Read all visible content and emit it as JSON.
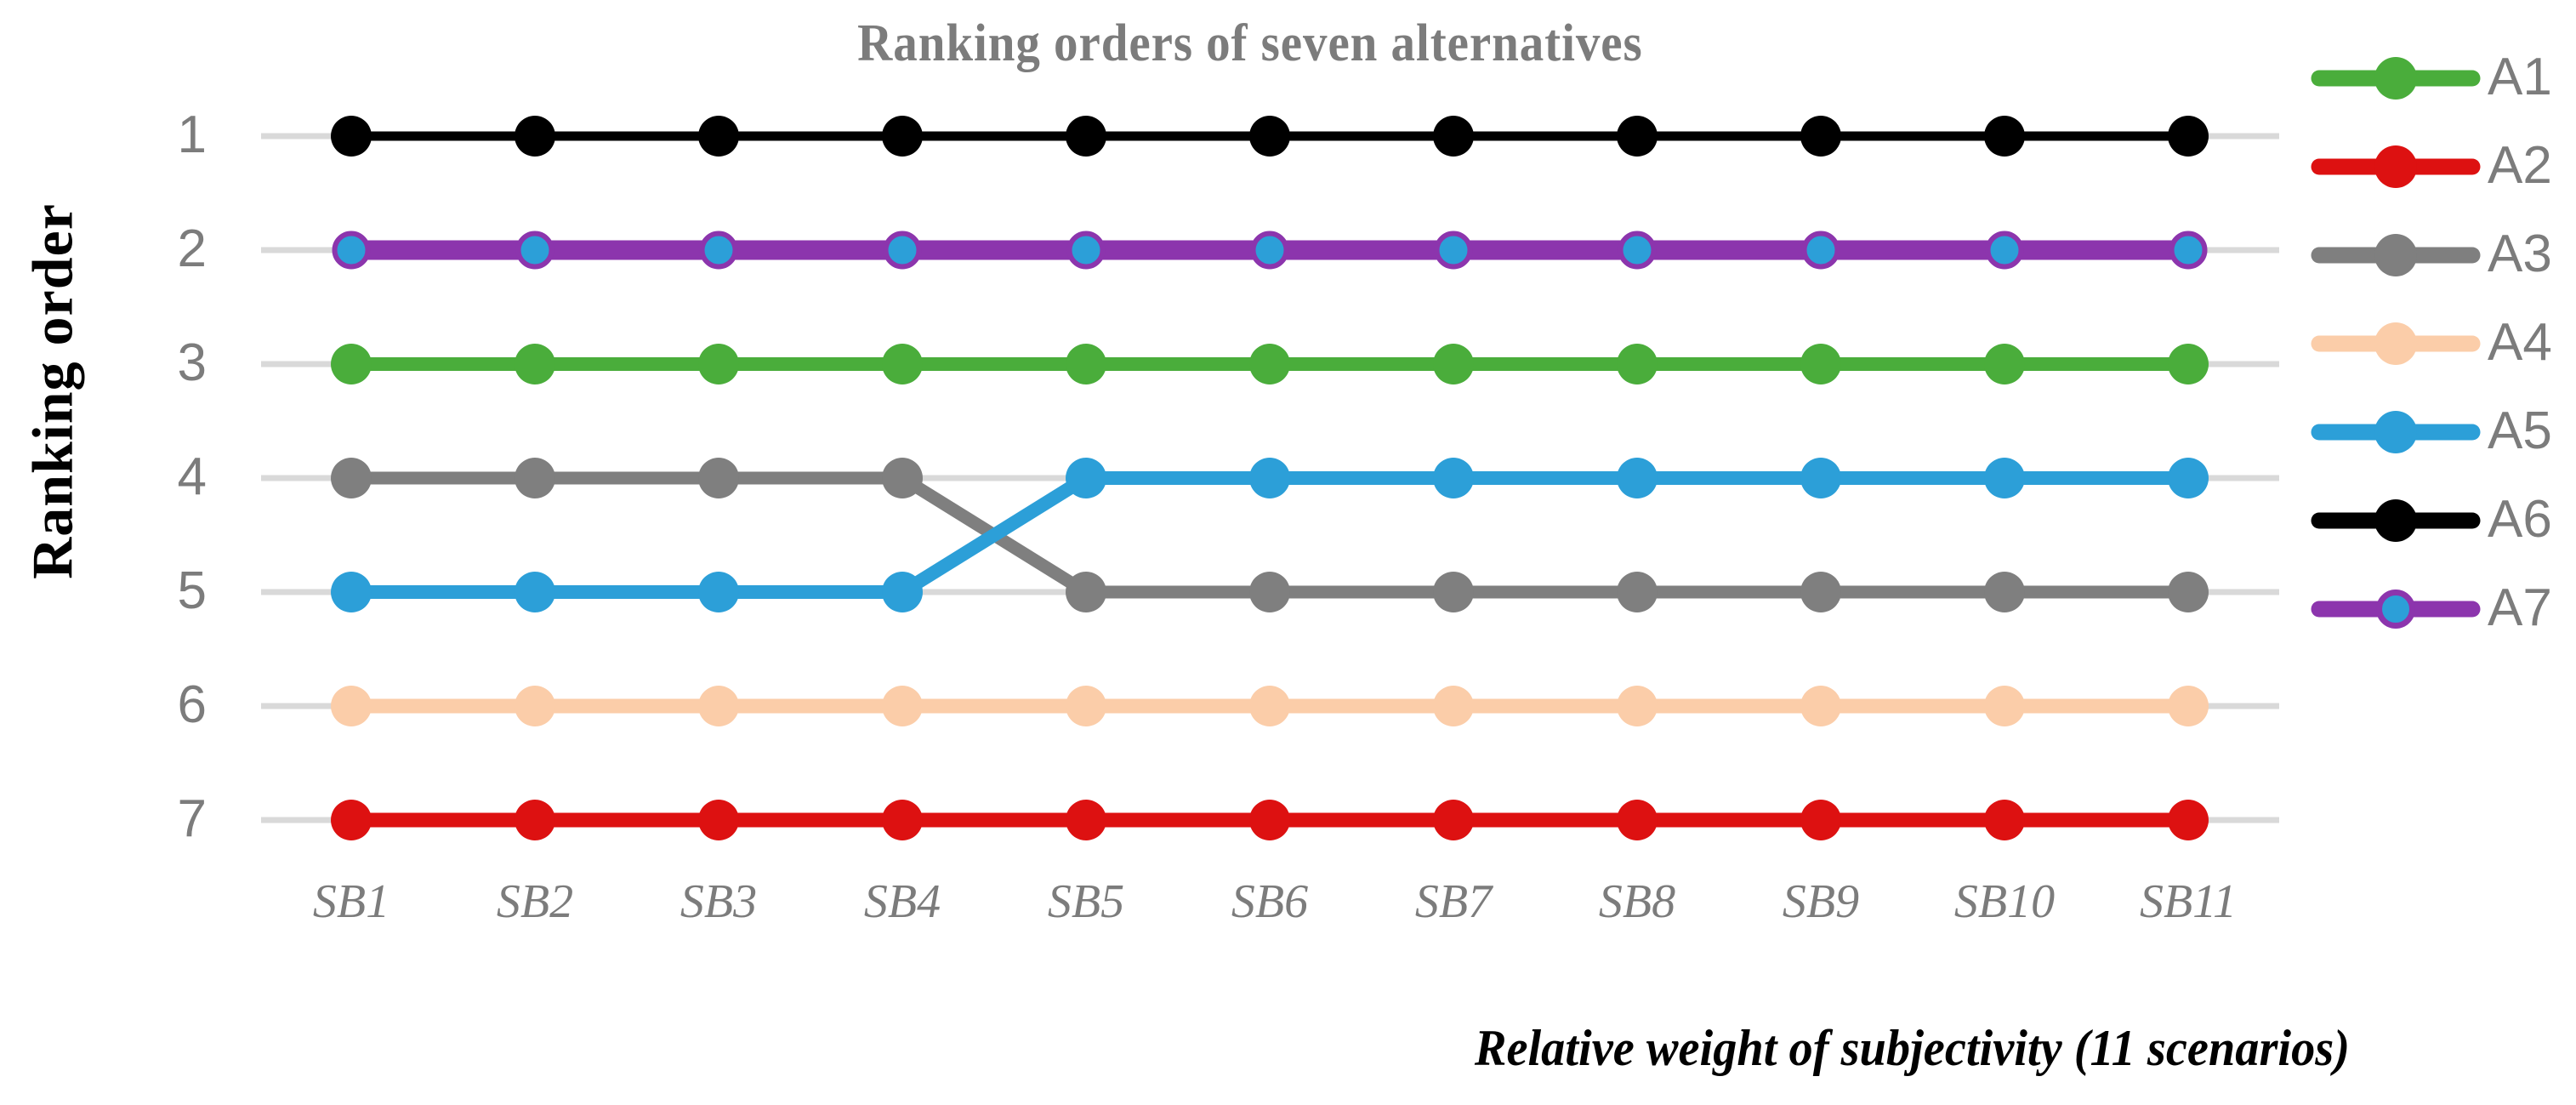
{
  "chart_data": {
    "type": "line",
    "title": "Ranking orders of seven alternatives",
    "xlabel": "Relative weight of subjectivity (11 scenarios)",
    "ylabel": "Ranking order",
    "categories": [
      "SB1",
      "SB2",
      "SB3",
      "SB4",
      "SB5",
      "SB6",
      "SB7",
      "SB8",
      "SB9",
      "SB10",
      "SB11"
    ],
    "y_ticks": [
      "1",
      "2",
      "3",
      "4",
      "5",
      "6",
      "7"
    ],
    "ylim": [
      1,
      7
    ],
    "y_axis_inverted": true,
    "grid": "horizontal",
    "gridline_color": "#D9D9D9",
    "legend_position": "right",
    "text_color": "#7C7C7C",
    "series": [
      {
        "name": "A1",
        "color": "#4AAD3B",
        "values": [
          3,
          3,
          3,
          3,
          3,
          3,
          3,
          3,
          3,
          3,
          3
        ]
      },
      {
        "name": "A2",
        "color": "#DD1111",
        "values": [
          7,
          7,
          7,
          7,
          7,
          7,
          7,
          7,
          7,
          7,
          7
        ]
      },
      {
        "name": "A3",
        "color": "#7F7F7F",
        "values": [
          4,
          4,
          4,
          4,
          5,
          5,
          5,
          5,
          5,
          5,
          5
        ]
      },
      {
        "name": "A4",
        "color": "#FBCDA9",
        "values": [
          6,
          6,
          6,
          6,
          6,
          6,
          6,
          6,
          6,
          6,
          6
        ]
      },
      {
        "name": "A5",
        "color": "#2C9FD8",
        "values": [
          5,
          5,
          5,
          5,
          4,
          4,
          4,
          4,
          4,
          4,
          4
        ]
      },
      {
        "name": "A6",
        "color": "#000000",
        "values": [
          1,
          1,
          1,
          1,
          1,
          1,
          1,
          1,
          1,
          1,
          1
        ]
      },
      {
        "name": "A7",
        "color": "#8C35AD",
        "marker_fill": "#2C9FD8",
        "values": [
          2,
          2,
          2,
          2,
          2,
          2,
          2,
          2,
          2,
          2,
          2
        ]
      }
    ]
  }
}
